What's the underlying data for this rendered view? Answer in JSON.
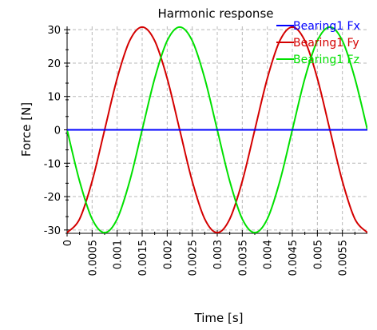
{
  "chart_data": {
    "type": "line",
    "title": "Harmonic response",
    "xlabel": "Time [s]",
    "ylabel": "Force [N]",
    "xlim": [
      0,
      0.006
    ],
    "ylim": [
      -31,
      31
    ],
    "grid": true,
    "legend_position": "top-right",
    "xticks": [
      0,
      0.0005,
      0.001,
      0.0015,
      0.002,
      0.0025,
      0.003,
      0.0035,
      0.004,
      0.0045,
      0.005,
      0.0055
    ],
    "xtick_labels": [
      "0",
      "0.0005",
      "0.001",
      "0.0015",
      "0.002",
      "0.0025",
      "0.003",
      "0.0035",
      "0.004",
      "0.0045",
      "0.005",
      "0.0055"
    ],
    "yticks": [
      -30,
      -20,
      -10,
      0,
      10,
      20,
      30
    ],
    "ytick_labels": [
      "-30",
      "-20",
      "-10",
      "0",
      "10",
      "20",
      "30"
    ],
    "series": [
      {
        "name": "Bearing1 Fx",
        "color": "#0000ff",
        "x": [
          0,
          0.006
        ],
        "y": [
          0,
          0
        ]
      },
      {
        "name": "Bearing1 Fy",
        "color": "#d40000",
        "x": [
          0,
          0.00025,
          0.0005,
          0.00075,
          0.001,
          0.00125,
          0.0015,
          0.00175,
          0.002,
          0.00225,
          0.0025,
          0.00275,
          0.003,
          0.00325,
          0.0035,
          0.00375,
          0.004,
          0.00425,
          0.0045,
          0.00475,
          0.005,
          0.00525,
          0.0055,
          0.00575,
          0.006
        ],
        "y": [
          -30.8,
          -26.7,
          -15.4,
          0,
          15.4,
          26.7,
          30.8,
          26.7,
          15.4,
          0,
          -15.4,
          -26.7,
          -30.8,
          -26.7,
          -15.4,
          0,
          15.4,
          26.7,
          30.8,
          26.7,
          15.4,
          0,
          -15.4,
          -26.7,
          -30.8
        ]
      },
      {
        "name": "Bearing1 Fz",
        "color": "#00e000",
        "x": [
          0,
          0.00025,
          0.0005,
          0.00075,
          0.001,
          0.00125,
          0.0015,
          0.00175,
          0.002,
          0.00225,
          0.0025,
          0.00275,
          0.003,
          0.00325,
          0.0035,
          0.00375,
          0.004,
          0.00425,
          0.0045,
          0.00475,
          0.005,
          0.00525,
          0.0055,
          0.00575,
          0.006
        ],
        "y": [
          0,
          -15.4,
          -26.7,
          -30.8,
          -26.7,
          -15.4,
          0,
          15.4,
          26.7,
          30.8,
          26.7,
          15.4,
          0,
          -15.4,
          -26.7,
          -30.8,
          -26.7,
          -15.4,
          0,
          15.4,
          26.7,
          30.8,
          26.7,
          15.4,
          0
        ]
      }
    ]
  }
}
